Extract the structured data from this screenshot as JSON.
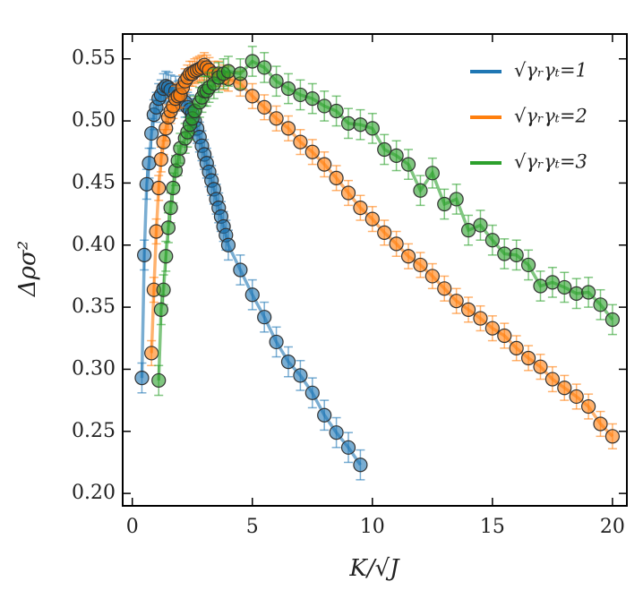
{
  "chart_data": {
    "type": "line",
    "xlabel": "K/√J",
    "ylabel": "Δρσ²",
    "xlim": [
      -0.4,
      20.6
    ],
    "ylim": [
      0.19,
      0.57
    ],
    "xticks": [
      0,
      5,
      10,
      15,
      20
    ],
    "yticks": [
      {
        "value": 0.2,
        "label": "0.20"
      },
      0.25,
      {
        "value": 0.3,
        "label": "0.30"
      },
      0.35,
      {
        "value": 0.4,
        "label": "0.40"
      },
      0.45,
      {
        "value": 0.5,
        "label": "0.50"
      },
      0.55
    ],
    "legend": "upper right",
    "series": [
      {
        "name": "√γᵣγₜ=1",
        "color": "#1f77b4",
        "error": 0.012,
        "x": [
          0.4,
          0.5,
          0.6,
          0.7,
          0.8,
          0.9,
          1.0,
          1.1,
          1.2,
          1.3,
          1.4,
          1.5,
          1.6,
          1.8,
          1.9,
          2.0,
          2.2,
          2.3,
          2.4,
          2.5,
          2.6,
          2.7,
          2.8,
          2.9,
          3.0,
          3.1,
          3.2,
          3.3,
          3.4,
          3.5,
          3.6,
          3.7,
          3.8,
          3.9,
          4.0,
          4.5,
          5.0,
          5.5,
          6.0,
          6.5,
          7.0,
          7.5,
          8.0,
          8.5,
          9.0,
          9.5
        ],
        "values": [
          0.293,
          0.392,
          0.449,
          0.466,
          0.49,
          0.505,
          0.511,
          0.518,
          0.521,
          0.526,
          0.528,
          0.527,
          0.525,
          0.524,
          0.52,
          0.521,
          0.515,
          0.511,
          0.509,
          0.506,
          0.5,
          0.494,
          0.487,
          0.48,
          0.473,
          0.466,
          0.459,
          0.452,
          0.445,
          0.437,
          0.43,
          0.423,
          0.415,
          0.408,
          0.4,
          0.38,
          0.36,
          0.342,
          0.322,
          0.306,
          0.295,
          0.281,
          0.263,
          0.249,
          0.237,
          0.223
        ]
      },
      {
        "name": "√γᵣγₜ=2",
        "color": "#ff7f0e",
        "error": 0.01,
        "x": [
          0.8,
          0.9,
          1.0,
          1.1,
          1.2,
          1.3,
          1.4,
          1.5,
          1.6,
          1.7,
          1.8,
          1.9,
          2.0,
          2.1,
          2.2,
          2.3,
          2.4,
          2.5,
          2.6,
          2.7,
          2.8,
          2.9,
          3.0,
          3.1,
          3.2,
          3.4,
          3.6,
          3.8,
          4.0,
          4.5,
          5.0,
          5.5,
          6.0,
          6.5,
          7.0,
          7.5,
          8.0,
          8.5,
          9.0,
          9.5,
          10.0,
          10.5,
          11.0,
          11.5,
          12.0,
          12.5,
          13.0,
          13.5,
          14.0,
          14.5,
          15.0,
          15.5,
          16.0,
          16.5,
          17.0,
          17.5,
          18.0,
          18.5,
          19.0,
          19.5,
          20.0
        ],
        "values": [
          0.313,
          0.364,
          0.411,
          0.446,
          0.469,
          0.483,
          0.494,
          0.503,
          0.508,
          0.512,
          0.518,
          0.52,
          0.521,
          0.527,
          0.532,
          0.535,
          0.538,
          0.538,
          0.54,
          0.541,
          0.542,
          0.543,
          0.545,
          0.543,
          0.541,
          0.538,
          0.538,
          0.535,
          0.534,
          0.53,
          0.52,
          0.511,
          0.502,
          0.494,
          0.483,
          0.475,
          0.465,
          0.454,
          0.442,
          0.43,
          0.421,
          0.41,
          0.401,
          0.391,
          0.384,
          0.375,
          0.365,
          0.355,
          0.348,
          0.341,
          0.333,
          0.327,
          0.317,
          0.309,
          0.302,
          0.292,
          0.285,
          0.278,
          0.27,
          0.256,
          0.246
        ]
      },
      {
        "name": "√γᵣγₜ=3",
        "color": "#2ca02c",
        "error": 0.012,
        "x": [
          1.1,
          1.2,
          1.3,
          1.4,
          1.5,
          1.6,
          1.7,
          1.8,
          1.9,
          2.0,
          2.2,
          2.3,
          2.4,
          2.5,
          2.6,
          2.8,
          2.9,
          3.0,
          3.1,
          3.2,
          3.4,
          3.6,
          3.8,
          4.0,
          4.5,
          5.0,
          5.5,
          6.0,
          6.5,
          7.0,
          7.5,
          8.0,
          8.5,
          9.0,
          9.5,
          10.0,
          10.5,
          11.0,
          11.5,
          12.0,
          12.5,
          13.0,
          13.5,
          14.0,
          14.5,
          15.0,
          15.5,
          16.0,
          16.5,
          17.0,
          17.5,
          18.0,
          18.5,
          19.0,
          19.5,
          20.0
        ],
        "values": [
          0.291,
          0.348,
          0.364,
          0.391,
          0.414,
          0.43,
          0.446,
          0.46,
          0.468,
          0.478,
          0.486,
          0.491,
          0.497,
          0.502,
          0.508,
          0.515,
          0.519,
          0.524,
          0.524,
          0.527,
          0.53,
          0.535,
          0.538,
          0.54,
          0.538,
          0.548,
          0.543,
          0.532,
          0.526,
          0.521,
          0.518,
          0.512,
          0.508,
          0.498,
          0.497,
          0.494,
          0.477,
          0.472,
          0.465,
          0.444,
          0.458,
          0.433,
          0.437,
          0.412,
          0.416,
          0.404,
          0.393,
          0.392,
          0.384,
          0.367,
          0.37,
          0.366,
          0.361,
          0.362,
          0.352,
          0.34
        ]
      }
    ]
  }
}
